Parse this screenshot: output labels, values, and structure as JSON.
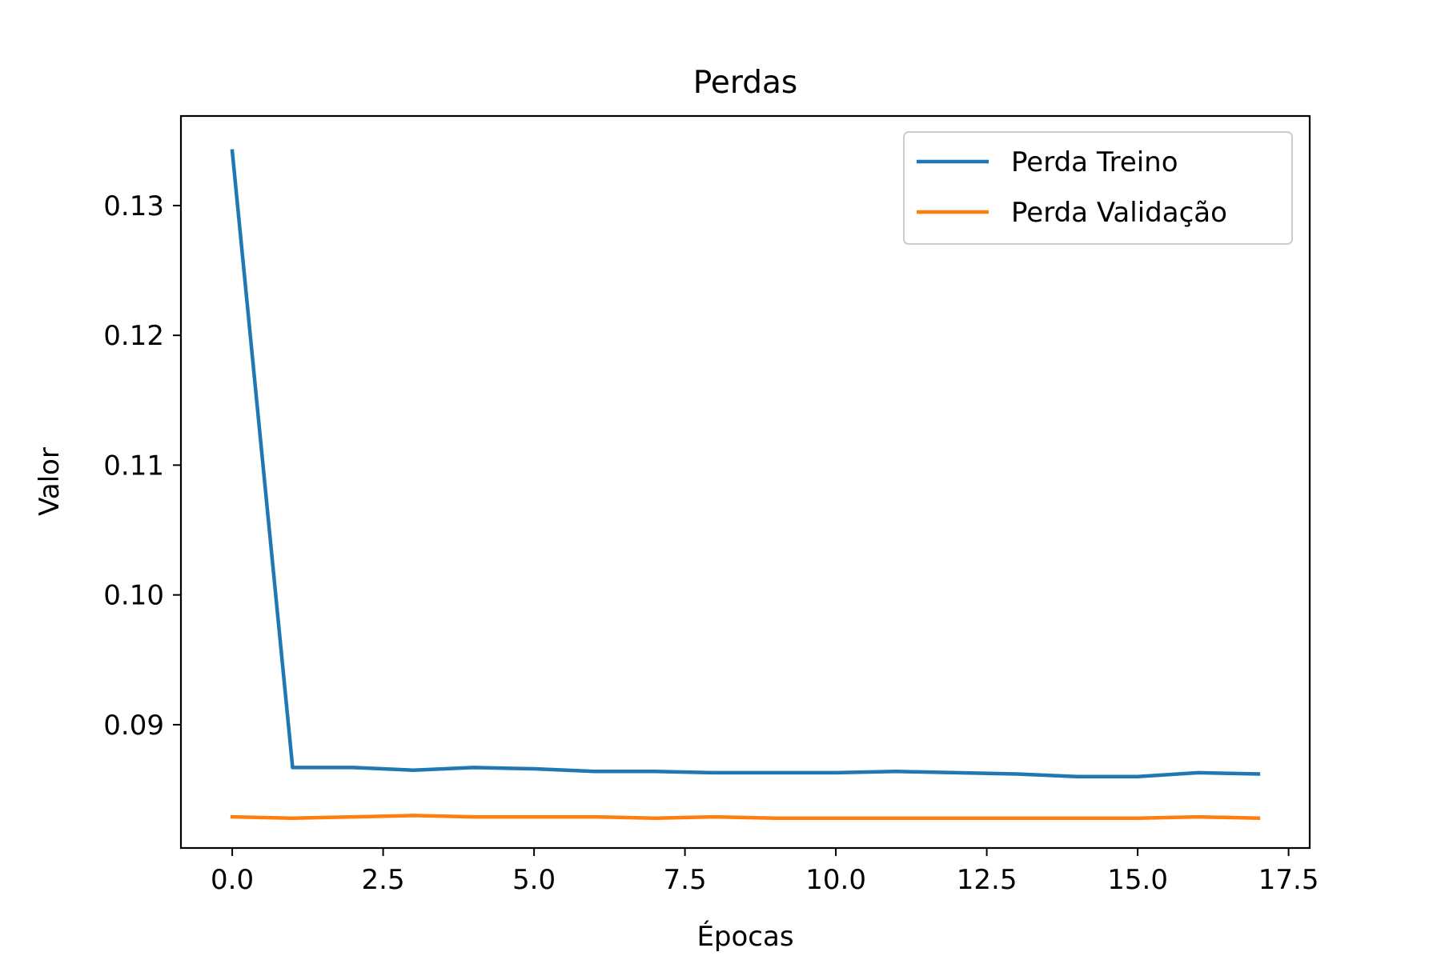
{
  "chart_data": {
    "type": "line",
    "title": "Perdas",
    "xlabel": "Épocas",
    "ylabel": "Valor",
    "xlim": [
      -0.85,
      17.85
    ],
    "ylim": [
      0.0805,
      0.1369
    ],
    "x_ticks": [
      0.0,
      2.5,
      5.0,
      7.5,
      10.0,
      12.5,
      15.0,
      17.5
    ],
    "x_tick_labels": [
      "0.0",
      "2.5",
      "5.0",
      "7.5",
      "10.0",
      "12.5",
      "15.0",
      "17.5"
    ],
    "y_ticks": [
      0.09,
      0.1,
      0.11,
      0.12,
      0.13
    ],
    "y_tick_labels": [
      "0.09",
      "0.10",
      "0.11",
      "0.12",
      "0.13"
    ],
    "grid": false,
    "legend_position": "upper right",
    "x": [
      0,
      1,
      2,
      3,
      4,
      5,
      6,
      7,
      8,
      9,
      10,
      11,
      12,
      13,
      14,
      15,
      16,
      17
    ],
    "series": [
      {
        "name": "Perda Treino",
        "color": "#1f77b4",
        "values": [
          0.1342,
          0.0867,
          0.0867,
          0.0865,
          0.0867,
          0.0866,
          0.0864,
          0.0864,
          0.0863,
          0.0863,
          0.0863,
          0.0864,
          0.0863,
          0.0862,
          0.086,
          0.086,
          0.0863,
          0.0862
        ]
      },
      {
        "name": "Perda Validação",
        "color": "#ff7f0e",
        "values": [
          0.0829,
          0.0828,
          0.0829,
          0.083,
          0.0829,
          0.0829,
          0.0829,
          0.0828,
          0.0829,
          0.0828,
          0.0828,
          0.0828,
          0.0828,
          0.0828,
          0.0828,
          0.0828,
          0.0829,
          0.0828
        ]
      }
    ]
  }
}
